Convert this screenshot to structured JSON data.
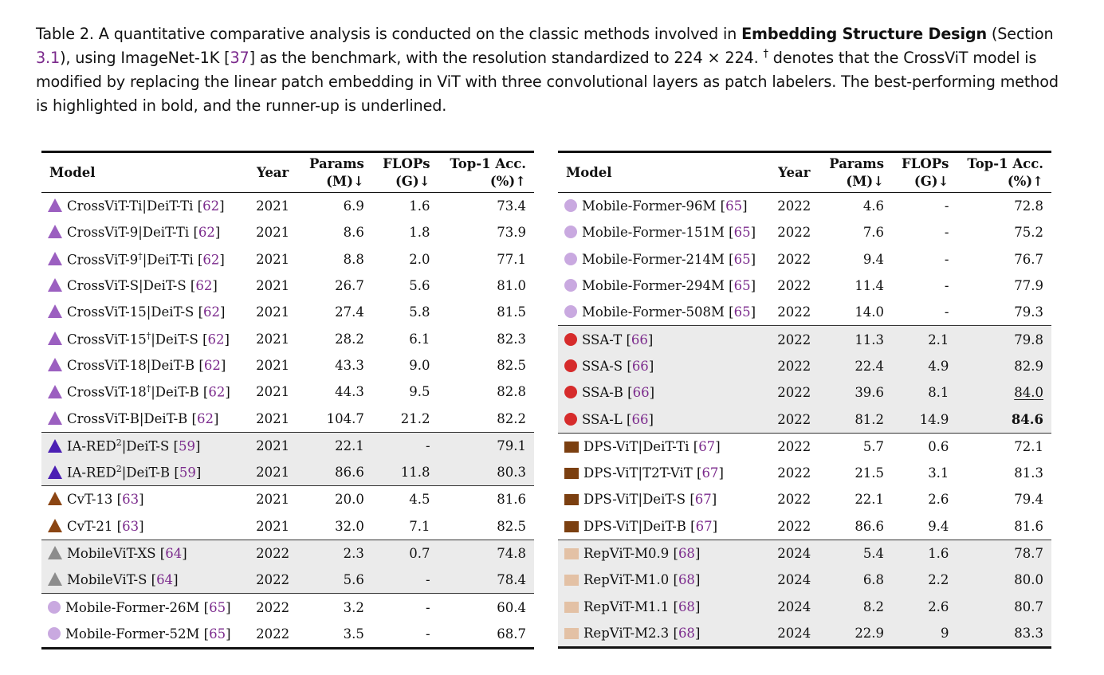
{
  "caption": {
    "pre": "Table 2.  A quantitative comparative analysis is conducted on the classic methods involved in ",
    "bold": "Embedding Structure Design",
    "mid1": " (Section ",
    "sec_ref": "3.1",
    "mid2": "), using ImageNet-1K [",
    "ref": "37",
    "mid3": "] as the benchmark, with the resolution standardized to 224 × 224. ",
    "dagger": "†",
    "post": " denotes that the CrossViT model is modified by replacing the linear patch embedding in ViT with three convolutional layers as patch labelers. The best-performing method is highlighted in bold, and the runner-up is underlined."
  },
  "headers": {
    "model": "Model",
    "year": "Year",
    "params_1": "Params",
    "params_2": "(M)↓",
    "flops_1": "FLOPs",
    "flops_2": "(G)↓",
    "acc_1": "Top-1 Acc.",
    "acc_2": "(%)↑"
  },
  "colors": {
    "crossvit": "#9b5fc0",
    "iared": "#4b1fb3",
    "cvt": "#8b4513",
    "mobilevit": "#8c8c8c",
    "mobileformer": "#c9a9e0",
    "ssa": "#d62b2b",
    "dpsvit": "#7b3f10",
    "repvit": "#e3c1a5"
  },
  "left_rows": [
    {
      "icon": "triangle",
      "color": "#9b5fc0",
      "name": "CrossViT-Ti|DeiT-Ti",
      "sup": "",
      "name2": "",
      "ref": "62",
      "year": "2021",
      "params": "6.9",
      "flops": "1.6",
      "acc": "73.4",
      "shade": false,
      "gtop": false
    },
    {
      "icon": "triangle",
      "color": "#9b5fc0",
      "name": "CrossViT-9|DeiT-Ti",
      "sup": "",
      "name2": "",
      "ref": "62",
      "year": "2021",
      "params": "8.6",
      "flops": "1.8",
      "acc": "73.9",
      "shade": false,
      "gtop": false
    },
    {
      "icon": "triangle",
      "color": "#9b5fc0",
      "name": "CrossViT-9",
      "sup": "†",
      "name2": "|DeiT-Ti",
      "ref": "62",
      "year": "2021",
      "params": "8.8",
      "flops": "2.0",
      "acc": "77.1",
      "shade": false,
      "gtop": false
    },
    {
      "icon": "triangle",
      "color": "#9b5fc0",
      "name": "CrossViT-S|DeiT-S",
      "sup": "",
      "name2": "",
      "ref": "62",
      "year": "2021",
      "params": "26.7",
      "flops": "5.6",
      "acc": "81.0",
      "shade": false,
      "gtop": false
    },
    {
      "icon": "triangle",
      "color": "#9b5fc0",
      "name": "CrossViT-15|DeiT-S",
      "sup": "",
      "name2": "",
      "ref": "62",
      "year": "2021",
      "params": "27.4",
      "flops": "5.8",
      "acc": "81.5",
      "shade": false,
      "gtop": false
    },
    {
      "icon": "triangle",
      "color": "#9b5fc0",
      "name": "CrossViT-15",
      "sup": "†",
      "name2": "|DeiT-S",
      "ref": "62",
      "year": "2021",
      "params": "28.2",
      "flops": "6.1",
      "acc": "82.3",
      "shade": false,
      "gtop": false
    },
    {
      "icon": "triangle",
      "color": "#9b5fc0",
      "name": "CrossViT-18|DeiT-B",
      "sup": "",
      "name2": "",
      "ref": "62",
      "year": "2021",
      "params": "43.3",
      "flops": "9.0",
      "acc": "82.5",
      "shade": false,
      "gtop": false
    },
    {
      "icon": "triangle",
      "color": "#9b5fc0",
      "name": "CrossViT-18",
      "sup": "†",
      "name2": "|DeiT-B",
      "ref": "62",
      "year": "2021",
      "params": "44.3",
      "flops": "9.5",
      "acc": "82.8",
      "shade": false,
      "gtop": false
    },
    {
      "icon": "triangle",
      "color": "#9b5fc0",
      "name": "CrossViT-B|DeiT-B",
      "sup": "",
      "name2": "",
      "ref": "62",
      "year": "2021",
      "params": "104.7",
      "flops": "21.2",
      "acc": "82.2",
      "shade": false,
      "gtop": false
    },
    {
      "icon": "triangle",
      "color": "#4b1fb3",
      "name": "IA-RED",
      "sup": "2",
      "name2": "|DeiT-S",
      "ref": "59",
      "year": "2021",
      "params": "22.1",
      "flops": "-",
      "acc": "79.1",
      "shade": true,
      "gtop": true
    },
    {
      "icon": "triangle",
      "color": "#4b1fb3",
      "name": "IA-RED",
      "sup": "2",
      "name2": "|DeiT-B",
      "ref": "59",
      "year": "2021",
      "params": "86.6",
      "flops": "11.8",
      "acc": "80.3",
      "shade": true,
      "gtop": false
    },
    {
      "icon": "triangle",
      "color": "#8b4513",
      "name": "CvT-13",
      "sup": "",
      "name2": "",
      "ref": "63",
      "year": "2021",
      "params": "20.0",
      "flops": "4.5",
      "acc": "81.6",
      "shade": false,
      "gtop": true
    },
    {
      "icon": "triangle",
      "color": "#8b4513",
      "name": "CvT-21",
      "sup": "",
      "name2": "",
      "ref": "63",
      "year": "2021",
      "params": "32.0",
      "flops": "7.1",
      "acc": "82.5",
      "shade": false,
      "gtop": false
    },
    {
      "icon": "triangle",
      "color": "#8c8c8c",
      "name": "MobileViT-XS",
      "sup": "",
      "name2": "",
      "ref": "64",
      "year": "2022",
      "params": "2.3",
      "flops": "0.7",
      "acc": "74.8",
      "shade": true,
      "gtop": true
    },
    {
      "icon": "triangle",
      "color": "#8c8c8c",
      "name": "MobileViT-S",
      "sup": "",
      "name2": "",
      "ref": "64",
      "year": "2022",
      "params": "5.6",
      "flops": "-",
      "acc": "78.4",
      "shade": true,
      "gtop": false
    },
    {
      "icon": "circle",
      "color": "#c9a9e0",
      "name": "Mobile-Former-26M",
      "sup": "",
      "name2": "",
      "ref": "65",
      "year": "2022",
      "params": "3.2",
      "flops": "-",
      "acc": "60.4",
      "shade": false,
      "gtop": true
    },
    {
      "icon": "circle",
      "color": "#c9a9e0",
      "name": "Mobile-Former-52M",
      "sup": "",
      "name2": "",
      "ref": "65",
      "year": "2022",
      "params": "3.5",
      "flops": "-",
      "acc": "68.7",
      "shade": false,
      "gtop": false
    }
  ],
  "right_rows": [
    {
      "icon": "circle",
      "color": "#c9a9e0",
      "name": "Mobile-Former-96M",
      "sup": "",
      "name2": "",
      "ref": "65",
      "year": "2022",
      "params": "4.6",
      "flops": "-",
      "acc": "72.8",
      "shade": false,
      "gtop": false
    },
    {
      "icon": "circle",
      "color": "#c9a9e0",
      "name": "Mobile-Former-151M",
      "sup": "",
      "name2": "",
      "ref": "65",
      "year": "2022",
      "params": "7.6",
      "flops": "-",
      "acc": "75.2",
      "shade": false,
      "gtop": false
    },
    {
      "icon": "circle",
      "color": "#c9a9e0",
      "name": "Mobile-Former-214M",
      "sup": "",
      "name2": "",
      "ref": "65",
      "year": "2022",
      "params": "9.4",
      "flops": "-",
      "acc": "76.7",
      "shade": false,
      "gtop": false
    },
    {
      "icon": "circle",
      "color": "#c9a9e0",
      "name": "Mobile-Former-294M",
      "sup": "",
      "name2": "",
      "ref": "65",
      "year": "2022",
      "params": "11.4",
      "flops": "-",
      "acc": "77.9",
      "shade": false,
      "gtop": false
    },
    {
      "icon": "circle",
      "color": "#c9a9e0",
      "name": "Mobile-Former-508M",
      "sup": "",
      "name2": "",
      "ref": "65",
      "year": "2022",
      "params": "14.0",
      "flops": "-",
      "acc": "79.3",
      "shade": false,
      "gtop": false
    },
    {
      "icon": "circle",
      "color": "#d62b2b",
      "name": "SSA-T",
      "sup": "",
      "name2": "",
      "ref": "66",
      "year": "2022",
      "params": "11.3",
      "flops": "2.1",
      "acc": "79.8",
      "shade": true,
      "gtop": true
    },
    {
      "icon": "circle",
      "color": "#d62b2b",
      "name": "SSA-S",
      "sup": "",
      "name2": "",
      "ref": "66",
      "year": "2022",
      "params": "22.4",
      "flops": "4.9",
      "acc": "82.9",
      "shade": true,
      "gtop": false
    },
    {
      "icon": "circle",
      "color": "#d62b2b",
      "name": "SSA-B",
      "sup": "",
      "name2": "",
      "ref": "66",
      "year": "2022",
      "params": "39.6",
      "flops": "8.1",
      "acc": "84.0",
      "acc_style": "second",
      "shade": true,
      "gtop": false
    },
    {
      "icon": "circle",
      "color": "#d62b2b",
      "name": "SSA-L",
      "sup": "",
      "name2": "",
      "ref": "66",
      "year": "2022",
      "params": "81.2",
      "flops": "14.9",
      "acc": "84.6",
      "acc_style": "best",
      "shade": true,
      "gtop": false
    },
    {
      "icon": "square",
      "color": "#7b3f10",
      "name": "DPS-ViT|DeiT-Ti",
      "sup": "",
      "name2": "",
      "ref": "67",
      "year": "2022",
      "params": "5.7",
      "flops": "0.6",
      "acc": "72.1",
      "shade": false,
      "gtop": true
    },
    {
      "icon": "square",
      "color": "#7b3f10",
      "name": "DPS-ViT|T2T-ViT",
      "sup": "",
      "name2": "",
      "ref": "67",
      "year": "2022",
      "params": "21.5",
      "flops": "3.1",
      "acc": "81.3",
      "shade": false,
      "gtop": false
    },
    {
      "icon": "square",
      "color": "#7b3f10",
      "name": "DPS-ViT|DeiT-S",
      "sup": "",
      "name2": "",
      "ref": "67",
      "year": "2022",
      "params": "22.1",
      "flops": "2.6",
      "acc": "79.4",
      "shade": false,
      "gtop": false
    },
    {
      "icon": "square",
      "color": "#7b3f10",
      "name": "DPS-ViT|DeiT-B",
      "sup": "",
      "name2": "",
      "ref": "67",
      "year": "2022",
      "params": "86.6",
      "flops": "9.4",
      "acc": "81.6",
      "shade": false,
      "gtop": false
    },
    {
      "icon": "square",
      "color": "#e3c1a5",
      "name": "RepViT-M0.9",
      "sup": "",
      "name2": "",
      "ref": "68",
      "year": "2024",
      "params": "5.4",
      "flops": "1.6",
      "acc": "78.7",
      "shade": true,
      "gtop": true
    },
    {
      "icon": "square",
      "color": "#e3c1a5",
      "name": "RepViT-M1.0",
      "sup": "",
      "name2": "",
      "ref": "68",
      "year": "2024",
      "params": "6.8",
      "flops": "2.2",
      "acc": "80.0",
      "shade": true,
      "gtop": false
    },
    {
      "icon": "square",
      "color": "#e3c1a5",
      "name": "RepViT-M1.1",
      "sup": "",
      "name2": "",
      "ref": "68",
      "year": "2024",
      "params": "8.2",
      "flops": "2.6",
      "acc": "80.7",
      "shade": true,
      "gtop": false
    },
    {
      "icon": "square",
      "color": "#e3c1a5",
      "name": "RepViT-M2.3",
      "sup": "",
      "name2": "",
      "ref": "68",
      "year": "2024",
      "params": "22.9",
      "flops": "9",
      "acc": "83.3",
      "shade": true,
      "gtop": false
    }
  ]
}
